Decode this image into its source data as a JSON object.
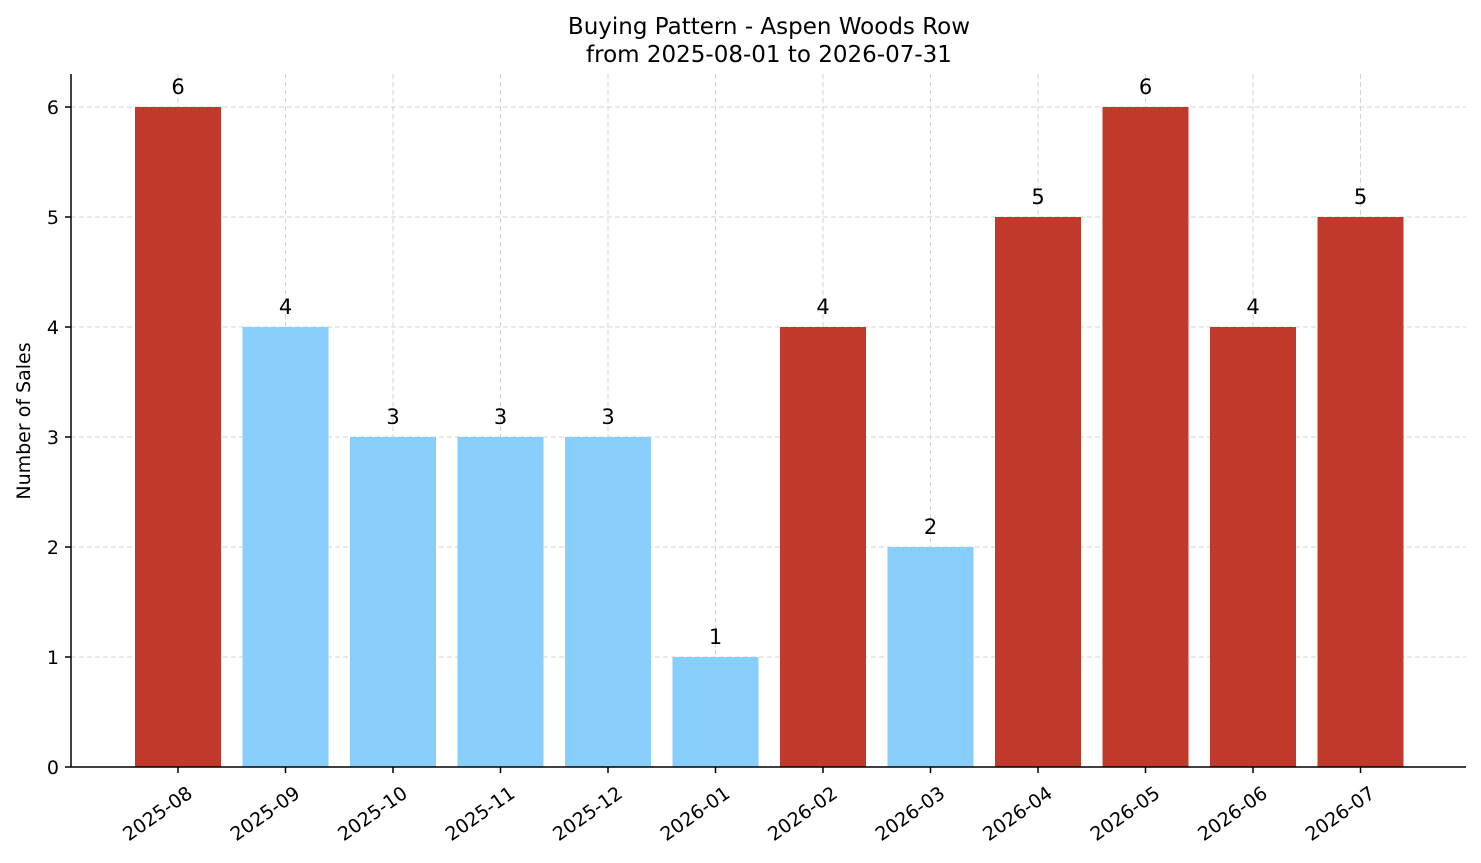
{
  "chart_data": {
    "type": "bar",
    "title": "Buying Pattern - Aspen Woods Row",
    "subtitle": "from 2025-08-01 to 2026-07-31",
    "xlabel": "",
    "ylabel": "Number of Sales",
    "categories": [
      "2025-08",
      "2025-09",
      "2025-10",
      "2025-11",
      "2025-12",
      "2026-01",
      "2026-02",
      "2026-03",
      "2026-04",
      "2026-05",
      "2026-06",
      "2026-07"
    ],
    "values": [
      6,
      4,
      3,
      3,
      3,
      1,
      4,
      2,
      5,
      6,
      4,
      5
    ],
    "bar_colors": [
      "#c0392b",
      "#87cefa",
      "#87cefa",
      "#87cefa",
      "#87cefa",
      "#87cefa",
      "#c0392b",
      "#87cefa",
      "#c0392b",
      "#c0392b",
      "#c0392b",
      "#c0392b"
    ],
    "ylim": [
      0,
      6.3
    ],
    "yticks": [
      0,
      1,
      2,
      3,
      4,
      5,
      6
    ],
    "grid": true,
    "legend": "none"
  }
}
